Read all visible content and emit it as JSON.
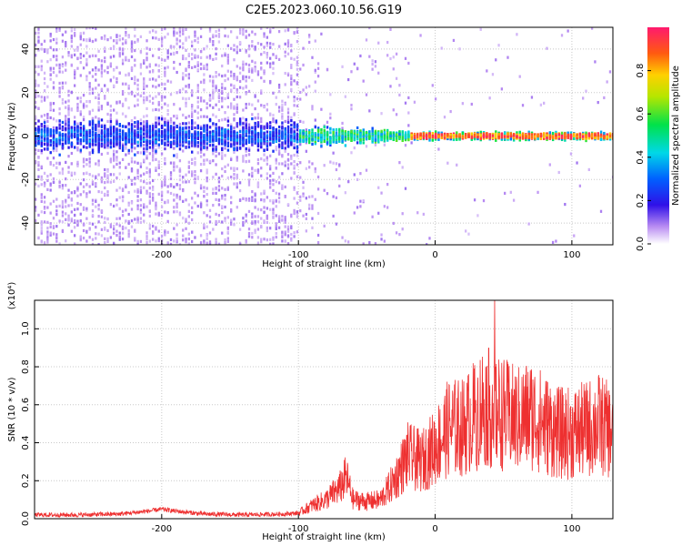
{
  "title": "C2E5.2023.060.10.56.G19",
  "colors": {
    "snr_line": "#ee3030",
    "spectro_low": "#e6d9fb",
    "spectro_mid": "#5a10ee",
    "spectro_peak": "#ff1010"
  },
  "chart_data": [
    {
      "type": "heatmap",
      "title": "C2E5.2023.060.10.56.G19",
      "xlabel": "Height of straight line (km)",
      "ylabel": "Frequency (Hz)",
      "xlim": [
        -293,
        130
      ],
      "ylim": [
        -50,
        50
      ],
      "xticks": [
        -200,
        -100,
        0,
        100
      ],
      "yticks": [
        -40,
        -20,
        0,
        20,
        40
      ],
      "grid": true,
      "colorbar": {
        "label": "Normalized spectral amplitude",
        "range": [
          0,
          1
        ],
        "ticks": [
          "0.0",
          "0.2",
          "0.4",
          "0.6",
          "0.8"
        ]
      },
      "description_values": {
        "band_center_hz": 0,
        "band_halfwidth_hz_before_minus100km": 8,
        "band_halfwidth_hz_after_0km": 2,
        "scatter_extent_hz": 50
      }
    },
    {
      "type": "line",
      "xlabel": "Height of straight line (km)",
      "ylabel": "SNR (10 * v/v)",
      "y_multiplier_label": "(x10⁴)",
      "xlim": [
        -293,
        130
      ],
      "ylim": [
        0,
        1.15
      ],
      "xticks": [
        -200,
        -100,
        0,
        100
      ],
      "yticks": [
        "0.0",
        "0.2",
        "0.4",
        "0.6",
        "0.8",
        "1.0"
      ],
      "grid": true,
      "series": [
        {
          "x": [
            -293,
            -260,
            -230,
            -210,
            -200,
            -190,
            -170,
            -140,
            -110,
            -100,
            -90,
            -80,
            -70,
            -65,
            -60,
            -50,
            -40,
            -30,
            -20,
            -10,
            0,
            10,
            20,
            30,
            35,
            40,
            50,
            60,
            70,
            80,
            90,
            100,
            110,
            120,
            130
          ],
          "y": [
            0.02,
            0.02,
            0.025,
            0.04,
            0.05,
            0.04,
            0.025,
            0.02,
            0.025,
            0.03,
            0.07,
            0.1,
            0.16,
            0.22,
            0.1,
            0.09,
            0.1,
            0.2,
            0.33,
            0.3,
            0.38,
            0.48,
            0.48,
            0.55,
            0.6,
            0.58,
            0.55,
            0.52,
            0.55,
            0.5,
            0.45,
            0.45,
            0.47,
            0.5,
            0.45
          ]
        }
      ]
    }
  ]
}
